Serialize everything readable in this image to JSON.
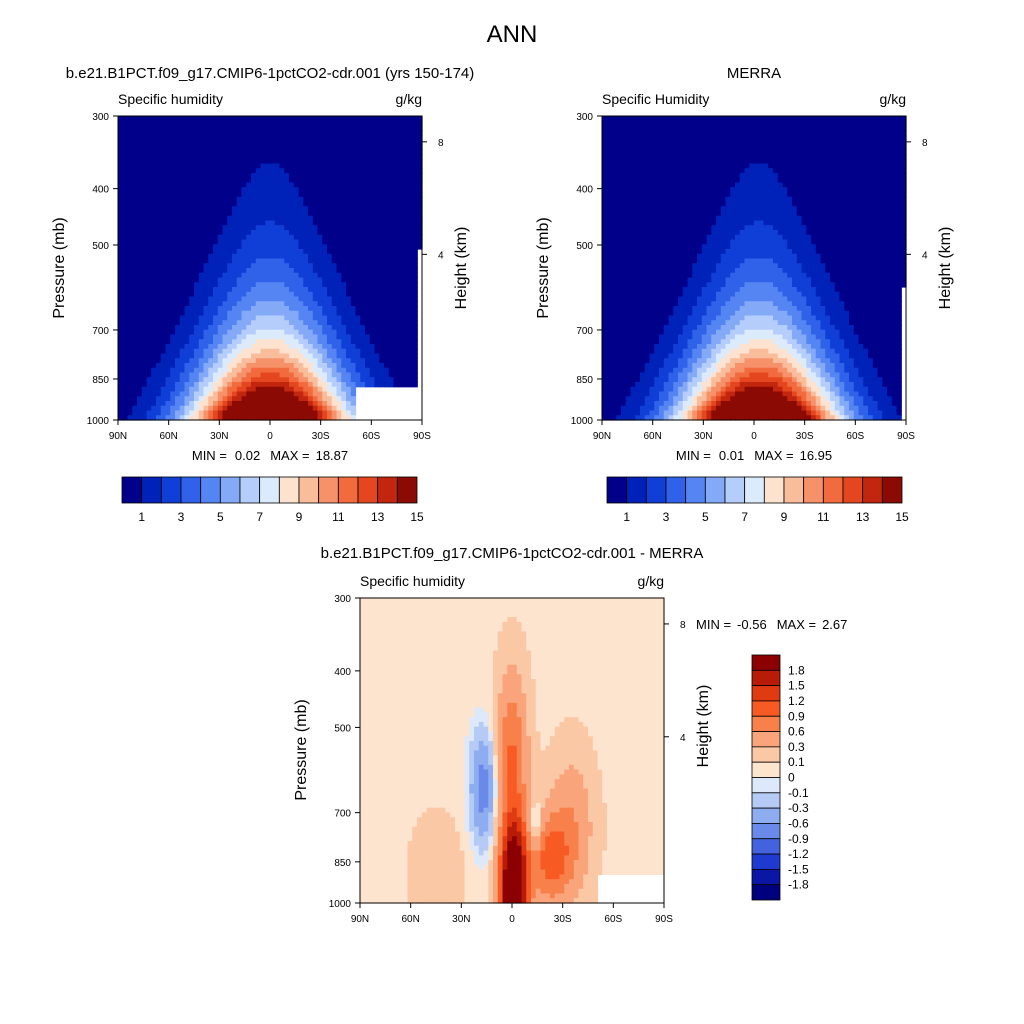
{
  "figure_title": "ANN",
  "chart_data": [
    {
      "id": "model",
      "type": "heatmap",
      "title": "b.e21.B1PCT.f09_g17.CMIP6-1pctCO2-cdr.001 (yrs 150-174)",
      "subtitle_left": "Specific humidity",
      "subtitle_right": "g/kg",
      "ylabel": "Pressure (mb)",
      "ylabel_right": "Height (km)",
      "x_ticks": [
        "90N",
        "60N",
        "30N",
        "0",
        "30S",
        "60S",
        "90S"
      ],
      "y_ticks": [
        "300",
        "400",
        "500",
        "700",
        "850",
        "1000"
      ],
      "y_right_ticks": [
        "8",
        "4"
      ],
      "stats": {
        "min_label": "MIN =",
        "min": "0.02",
        "max_label": "MAX =",
        "max": "18.87"
      },
      "peak_lat": 0,
      "colorbar_labels": [
        "1",
        "3",
        "5",
        "7",
        "9",
        "11",
        "13",
        "15"
      ]
    },
    {
      "id": "obs",
      "type": "heatmap",
      "title": "MERRA",
      "subtitle_left": "Specific Humidity",
      "subtitle_right": "g/kg",
      "ylabel": "Pressure (mb)",
      "ylabel_right": "Height (km)",
      "x_ticks": [
        "90N",
        "60N",
        "30N",
        "0",
        "30S",
        "60S",
        "90S"
      ],
      "y_ticks": [
        "300",
        "400",
        "500",
        "700",
        "850",
        "1000"
      ],
      "y_right_ticks": [
        "8",
        "4"
      ],
      "stats": {
        "min_label": "MIN =",
        "min": "0.01",
        "max_label": "MAX =",
        "max": "16.95"
      },
      "peak_lat": -3,
      "colorbar_labels": [
        "1",
        "3",
        "5",
        "7",
        "9",
        "11",
        "13",
        "15"
      ]
    },
    {
      "id": "diff",
      "type": "heatmap",
      "title": "b.e21.B1PCT.f09_g17.CMIP6-1pctCO2-cdr.001 - MERRA",
      "subtitle_left": "Specific humidity",
      "subtitle_right": "g/kg",
      "ylabel": "Pressure (mb)",
      "ylabel_right": "Height (km)",
      "x_ticks": [
        "90N",
        "60N",
        "30N",
        "0",
        "30S",
        "60S",
        "90S"
      ],
      "y_ticks": [
        "300",
        "400",
        "500",
        "700",
        "850",
        "1000"
      ],
      "y_right_ticks": [
        "8",
        "4"
      ],
      "stats": {
        "min_label": "MIN =",
        "min": "-0.56",
        "max_label": "MAX =",
        "max": "2.67"
      },
      "colorbar_labels": [
        "1.8",
        "1.5",
        "1.2",
        "0.9",
        "0.6",
        "0.3",
        "0.1",
        "0",
        "-0.1",
        "-0.3",
        "-0.6",
        "-0.9",
        "-1.2",
        "-1.5",
        "-1.8"
      ]
    }
  ],
  "colors": {
    "seq": [
      "#00008b",
      "#0022b8",
      "#0f3fd6",
      "#2f62e8",
      "#5585f2",
      "#84aaf7",
      "#b5cdfa",
      "#dcebfc",
      "#fde3cf",
      "#f9bd9c",
      "#f6916a",
      "#f26b3f",
      "#e4471f",
      "#c3260f",
      "#8b0b04"
    ],
    "div": [
      "#8b0000",
      "#b81c08",
      "#e03a10",
      "#f85a24",
      "#f8804a",
      "#f9a47b",
      "#fbc8a6",
      "#fde4cf",
      "#dde9fb",
      "#b5cbf5",
      "#8eacf0",
      "#6a8ae9",
      "#4363de",
      "#1f3ad0",
      "#0b16a5",
      "#00007f"
    ]
  }
}
